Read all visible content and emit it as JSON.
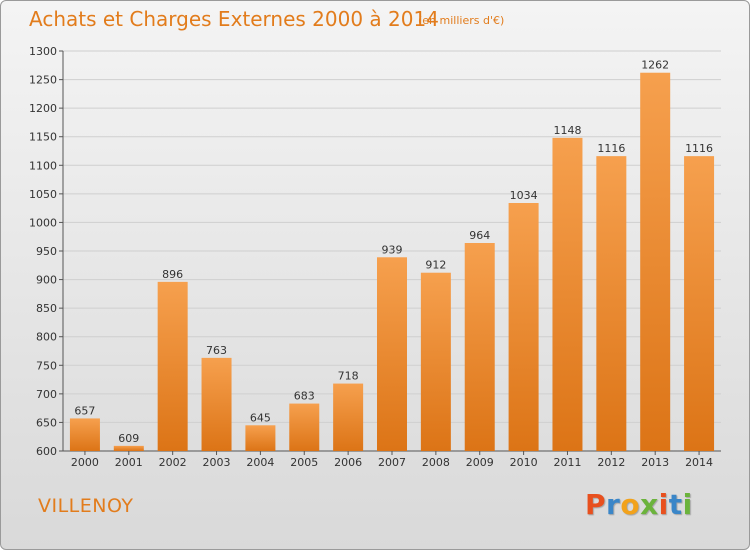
{
  "header": {
    "title": "Achats et Charges Externes 2000 à 2014",
    "subtitle": "(en milliers d'€)"
  },
  "footer": {
    "place": "VILLENOY",
    "logo_text": "Proxiti",
    "logo_colors": [
      "#e8501e",
      "#3a86c8",
      "#f2a21b",
      "#6bb33c",
      "#e8501e",
      "#3a86c8",
      "#6bb33c"
    ]
  },
  "colors": {
    "accent": "#e27c1c",
    "bar_top": "#f6a04e",
    "bar_bottom": "#dc7416",
    "grid": "#cfcfcf"
  },
  "chart_data": {
    "type": "bar",
    "categories": [
      "2000",
      "2001",
      "2002",
      "2003",
      "2004",
      "2005",
      "2006",
      "2007",
      "2008",
      "2009",
      "2010",
      "2011",
      "2012",
      "2013",
      "2014"
    ],
    "values": [
      657,
      609,
      896,
      763,
      645,
      683,
      718,
      939,
      912,
      964,
      1034,
      1148,
      1116,
      1262,
      1116
    ],
    "data_labels": [
      "657",
      "609",
      "896",
      "763",
      "645",
      "683",
      "718",
      "939",
      "912",
      "964",
      "1034",
      "1148",
      "1116",
      "1262",
      "1116"
    ],
    "ylim": [
      600,
      1300
    ],
    "yticks": [
      600,
      650,
      700,
      750,
      800,
      850,
      900,
      950,
      1000,
      1050,
      1100,
      1150,
      1200,
      1250,
      1300
    ],
    "ytick_labels": [
      "600",
      "650",
      "700",
      "750",
      "800",
      "850",
      "900",
      "950",
      "1000",
      "1050",
      "1100",
      "1150",
      "1200",
      "1250",
      "1300"
    ],
    "grid": true,
    "xlabel": "",
    "ylabel": ""
  }
}
